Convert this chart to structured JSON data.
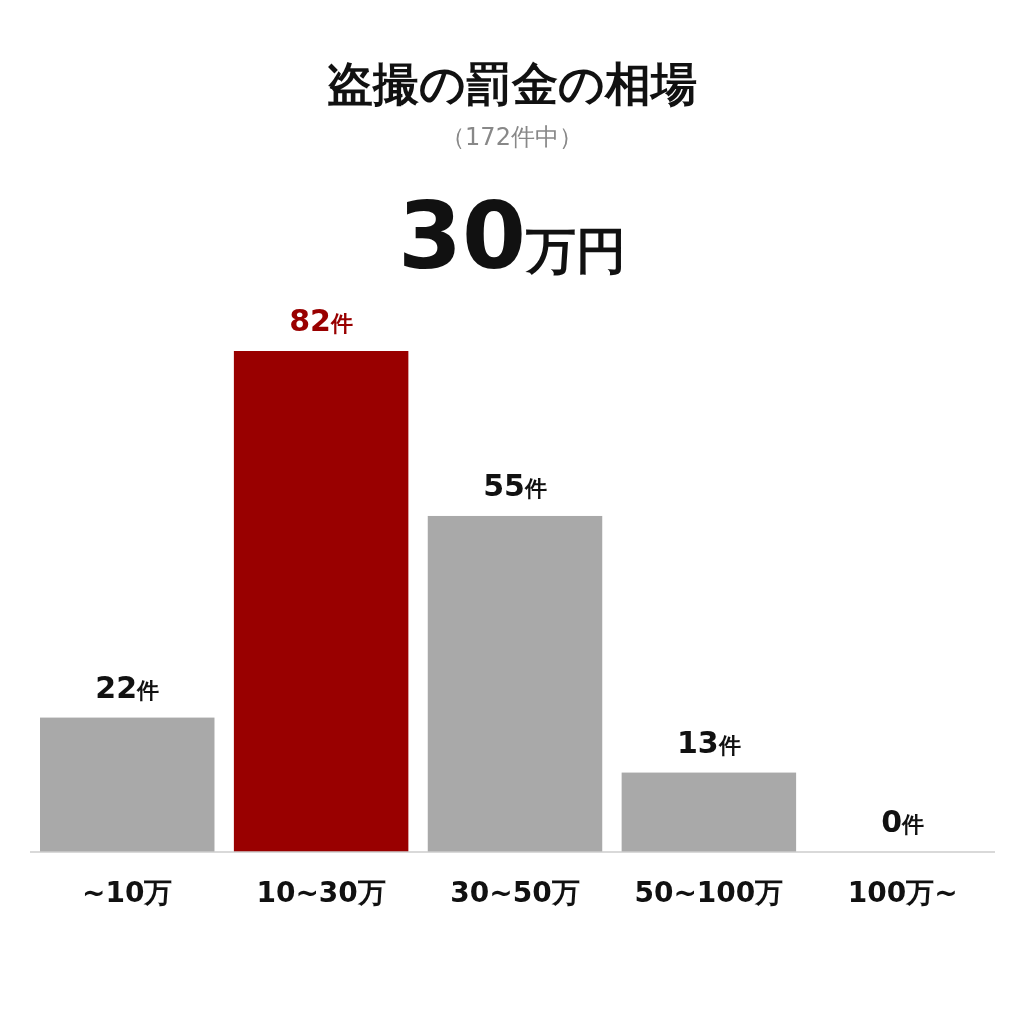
{
  "chart_data": {
    "type": "bar",
    "title": "盗撮の罰金の相場",
    "subtitle": "（172件中）",
    "annotations": [
      "30万円"
    ],
    "categories": [
      "~10万",
      "10~30万",
      "30~50万",
      "50~100万",
      "100万~"
    ],
    "values": [
      22,
      82,
      55,
      13,
      0
    ],
    "colors": [
      "#a9a9a9",
      "#990000",
      "#a9a9a9",
      "#a9a9a9",
      "#a9a9a9"
    ],
    "value_labels": [
      "22件",
      "82件",
      "55件",
      "13件",
      "0件"
    ]
  }
}
